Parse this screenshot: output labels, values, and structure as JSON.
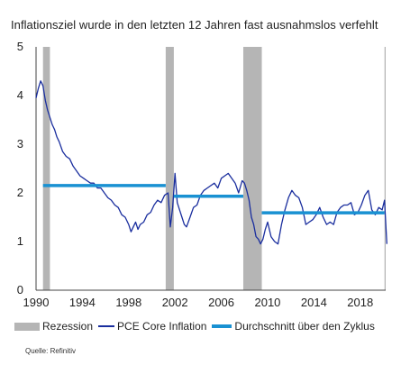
{
  "title": "Inflationsziel wurde in den letzten 12 Jahren fast ausnahmslos verfehlt",
  "source": "Quelle: Refinitiv",
  "colors": {
    "recession": "#b5b5b5",
    "pce": "#1a2e9e",
    "average": "#1991d2",
    "axis": "#444444"
  },
  "legend": {
    "recession": "Rezession",
    "pce": "PCE Core Inflation",
    "average": "Durchschnitt über den Zyklus"
  },
  "chart_data": {
    "type": "line",
    "title": "Inflationsziel wurde in den letzten 12 Jahren fast ausnahmslos verfehlt",
    "xlabel": "",
    "ylabel": "",
    "xlim": [
      1990,
      2020.2
    ],
    "ylim": [
      0,
      5
    ],
    "x_ticks": [
      1990,
      1994,
      1998,
      2002,
      2006,
      2010,
      2014,
      2018
    ],
    "y_ticks": [
      0,
      1,
      2,
      3,
      4,
      5
    ],
    "grid": false,
    "legend_position": "bottom",
    "recessions": [
      [
        1990.6,
        1991.2
      ],
      [
        2001.2,
        2001.9
      ],
      [
        2007.9,
        2009.5
      ],
      [
        2020.1,
        2020.5
      ]
    ],
    "cycle_averages": [
      {
        "start": 1990.6,
        "end": 2001.2,
        "value": 2.15
      },
      {
        "start": 2001.9,
        "end": 2007.9,
        "value": 1.93
      },
      {
        "start": 2009.5,
        "end": 2020.1,
        "value": 1.59
      }
    ],
    "series": [
      {
        "name": "PCE Core Inflation",
        "x": [
          1990.0,
          1990.2,
          1990.4,
          1990.6,
          1990.8,
          1991.0,
          1991.2,
          1991.4,
          1991.6,
          1991.8,
          1992.0,
          1992.3,
          1992.6,
          1992.9,
          1993.2,
          1993.5,
          1993.8,
          1994.1,
          1994.4,
          1994.7,
          1995.0,
          1995.3,
          1995.6,
          1995.9,
          1996.2,
          1996.5,
          1996.8,
          1997.1,
          1997.4,
          1997.7,
          1998.0,
          1998.2,
          1998.4,
          1998.6,
          1998.8,
          1999.0,
          1999.3,
          1999.6,
          1999.9,
          2000.2,
          2000.5,
          2000.8,
          2001.1,
          2001.4,
          2001.6,
          2001.8,
          2002.0,
          2002.2,
          2002.4,
          2002.6,
          2002.8,
          2003.0,
          2003.3,
          2003.6,
          2003.9,
          2004.2,
          2004.5,
          2004.8,
          2005.1,
          2005.4,
          2005.7,
          2006.0,
          2006.3,
          2006.6,
          2006.9,
          2007.2,
          2007.5,
          2007.8,
          2008.0,
          2008.2,
          2008.4,
          2008.6,
          2008.8,
          2009.0,
          2009.2,
          2009.4,
          2009.6,
          2009.8,
          2010.0,
          2010.3,
          2010.6,
          2010.9,
          2011.2,
          2011.5,
          2011.8,
          2012.1,
          2012.4,
          2012.7,
          2013.0,
          2013.3,
          2013.6,
          2013.9,
          2014.2,
          2014.5,
          2014.8,
          2015.1,
          2015.4,
          2015.7,
          2016.0,
          2016.3,
          2016.6,
          2016.9,
          2017.2,
          2017.5,
          2017.8,
          2018.1,
          2018.4,
          2018.7,
          2019.0,
          2019.3,
          2019.6,
          2019.9,
          2020.1,
          2020.3
        ],
        "values": [
          3.95,
          4.15,
          4.3,
          4.2,
          3.9,
          3.7,
          3.55,
          3.4,
          3.3,
          3.15,
          3.05,
          2.85,
          2.75,
          2.7,
          2.55,
          2.45,
          2.35,
          2.3,
          2.25,
          2.2,
          2.2,
          2.1,
          2.1,
          2.0,
          1.9,
          1.85,
          1.75,
          1.7,
          1.55,
          1.5,
          1.35,
          1.2,
          1.3,
          1.4,
          1.25,
          1.35,
          1.4,
          1.55,
          1.6,
          1.75,
          1.85,
          1.8,
          1.95,
          2.0,
          1.3,
          1.7,
          2.4,
          1.8,
          1.65,
          1.5,
          1.35,
          1.3,
          1.5,
          1.7,
          1.75,
          1.95,
          2.05,
          2.1,
          2.15,
          2.2,
          2.1,
          2.3,
          2.35,
          2.4,
          2.3,
          2.2,
          2.0,
          2.25,
          2.2,
          2.05,
          1.85,
          1.5,
          1.35,
          1.1,
          1.05,
          0.95,
          1.05,
          1.25,
          1.4,
          1.1,
          1.0,
          0.95,
          1.35,
          1.65,
          1.9,
          2.05,
          1.95,
          1.9,
          1.7,
          1.35,
          1.4,
          1.45,
          1.55,
          1.7,
          1.5,
          1.35,
          1.4,
          1.35,
          1.6,
          1.7,
          1.75,
          1.75,
          1.8,
          1.55,
          1.6,
          1.75,
          1.95,
          2.05,
          1.65,
          1.55,
          1.7,
          1.65,
          1.85,
          0.95
        ]
      }
    ]
  }
}
